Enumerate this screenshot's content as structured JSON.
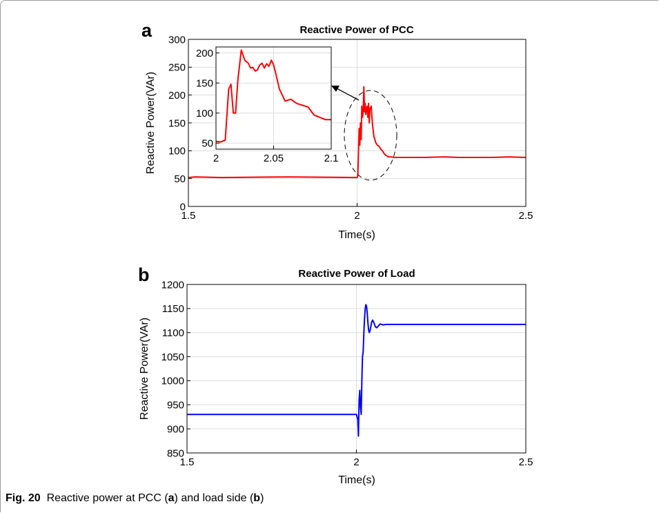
{
  "chart_data": [
    {
      "type": "line",
      "panel_label": "a",
      "title": "Reactive Power of PCC",
      "xlabel": "Time(s)",
      "ylabel": "Reactive Power(VAr)",
      "xlim": [
        1.5,
        2.5
      ],
      "ylim": [
        0,
        300
      ],
      "xticks": [
        1.5,
        2,
        2.5
      ],
      "yticks": [
        0,
        50,
        100,
        150,
        200,
        250,
        300
      ],
      "grid": true,
      "color": "#ff0000",
      "series": [
        {
          "x": [
            1.5,
            1.52,
            1.6,
            1.8,
            2.0,
            2.002,
            2.004,
            2.006,
            2.008,
            2.01,
            2.012,
            2.014,
            2.016,
            2.018,
            2.02,
            2.022,
            2.024,
            2.026,
            2.028,
            2.03,
            2.032,
            2.034,
            2.036,
            2.038,
            2.04,
            2.042,
            2.044,
            2.046,
            2.048,
            2.05,
            2.052,
            2.055,
            2.06,
            2.065,
            2.07,
            2.075,
            2.08,
            2.085,
            2.09,
            2.095,
            2.1,
            2.11,
            2.2,
            2.26,
            2.3,
            2.4,
            2.45,
            2.5
          ],
          "y": [
            52,
            53,
            52,
            53,
            52,
            55,
            95,
            140,
            110,
            150,
            120,
            180,
            160,
            170,
            215,
            170,
            185,
            165,
            175,
            180,
            160,
            185,
            150,
            175,
            178,
            180,
            160,
            145,
            135,
            125,
            122,
            115,
            110,
            108,
            103,
            100,
            95,
            92,
            90,
            89,
            89,
            88,
            88,
            89,
            88,
            88,
            89,
            88
          ]
        }
      ],
      "inset": {
        "xlim": [
          2.0,
          2.1
        ],
        "ylim": [
          40,
          210
        ],
        "xticks": [
          2,
          2.05,
          2.1
        ],
        "yticks": [
          50,
          100,
          150,
          200
        ],
        "x": [
          2.0,
          2.004,
          2.008,
          2.011,
          2.013,
          2.015,
          2.017,
          2.019,
          2.022,
          2.025,
          2.028,
          2.03,
          2.032,
          2.034,
          2.036,
          2.038,
          2.04,
          2.042,
          2.044,
          2.046,
          2.048,
          2.05,
          2.052,
          2.055,
          2.06,
          2.065,
          2.07,
          2.075,
          2.08,
          2.085,
          2.09,
          2.095,
          2.1
        ],
        "y": [
          53,
          52,
          55,
          140,
          148,
          100,
          100,
          155,
          205,
          188,
          183,
          175,
          176,
          170,
          172,
          180,
          183,
          175,
          182,
          178,
          188,
          180,
          165,
          140,
          120,
          123,
          116,
          113,
          110,
          97,
          93,
          89,
          89
        ]
      }
    },
    {
      "type": "line",
      "panel_label": "b",
      "title": "Reactive Power of Load",
      "xlabel": "Time(s)",
      "ylabel": "Reactive Power(VAr)",
      "xlim": [
        1.5,
        2.5
      ],
      "ylim": [
        850,
        1200
      ],
      "xticks": [
        1.5,
        2,
        2.5
      ],
      "yticks": [
        850,
        900,
        950,
        1000,
        1050,
        1100,
        1150,
        1200
      ],
      "grid": true,
      "color": "#0000ff",
      "series": [
        {
          "x": [
            1.5,
            1.8,
            2.0,
            2.004,
            2.006,
            2.008,
            2.01,
            2.012,
            2.014,
            2.016,
            2.018,
            2.02,
            2.022,
            2.024,
            2.026,
            2.028,
            2.03,
            2.032,
            2.034,
            2.036,
            2.038,
            2.04,
            2.042,
            2.045,
            2.048,
            2.052,
            2.056,
            2.06,
            2.065,
            2.07,
            2.075,
            2.08,
            2.085,
            2.09,
            2.1,
            2.2,
            2.3,
            2.4,
            2.5
          ],
          "y": [
            930,
            930,
            930,
            920,
            885,
            960,
            980,
            945,
            930,
            1000,
            1050,
            1060,
            1100,
            1130,
            1150,
            1158,
            1155,
            1140,
            1120,
            1105,
            1100,
            1103,
            1110,
            1122,
            1126,
            1120,
            1112,
            1110,
            1114,
            1118,
            1117,
            1116,
            1117,
            1117,
            1117,
            1117,
            1117,
            1117,
            1117
          ]
        }
      ]
    }
  ],
  "caption": {
    "label": "Fig. 20",
    "text": "Reactive power at PCC (",
    "a": "a",
    "mid": ") and load side (",
    "b": "b",
    "end": ")"
  }
}
